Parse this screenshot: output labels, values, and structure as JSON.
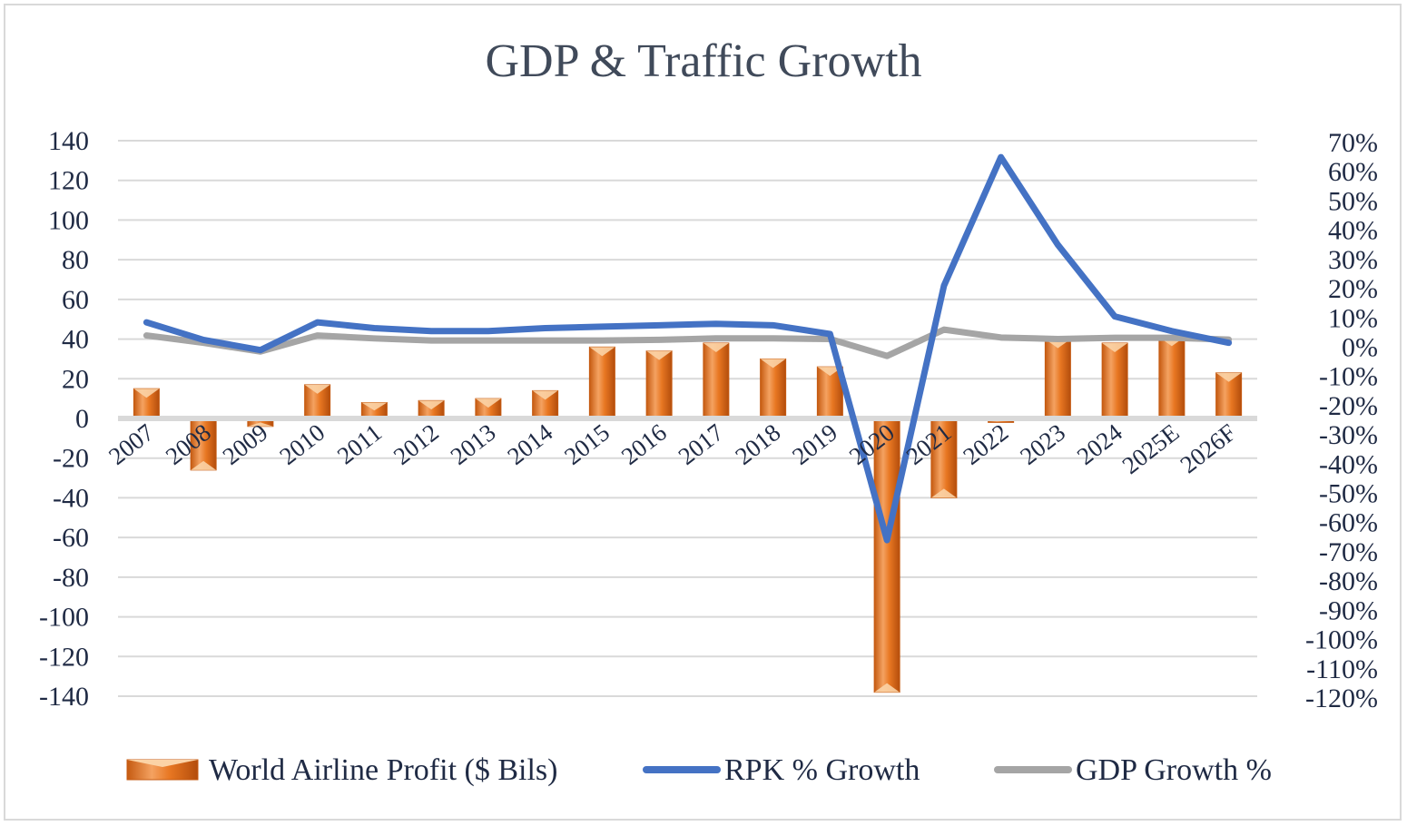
{
  "chart_data": {
    "type": "bar",
    "title": "GDP & Traffic Growth",
    "categories": [
      "2007",
      "2008",
      "2009",
      "2010",
      "2011",
      "2012",
      "2013",
      "2014",
      "2015",
      "2016",
      "2017",
      "2018",
      "2019",
      "2020",
      "2021",
      "2022",
      "2023",
      "2024",
      "2025E",
      "2026F"
    ],
    "series": [
      {
        "name": "World Airline Profit ($ Bils)",
        "type": "bar",
        "axis": "left",
        "color": "#e87722",
        "values": [
          15,
          -26,
          -4,
          17,
          8,
          9,
          10,
          14,
          36,
          34,
          38,
          30,
          26,
          -138,
          -40,
          -2,
          40,
          38,
          41,
          23
        ]
      },
      {
        "name": "RPK % Growth",
        "type": "line",
        "axis": "right",
        "color": "#4472c4",
        "values": [
          8.5,
          2.5,
          -1,
          8.5,
          6.5,
          5.5,
          5.5,
          6.5,
          7,
          7.5,
          8,
          7.5,
          4.5,
          -66,
          21,
          65,
          35,
          10.5,
          5.5,
          1.5
        ]
      },
      {
        "name": "GDP Growth %",
        "type": "line",
        "axis": "right",
        "color": "#a5a5a5",
        "values": [
          4,
          1.5,
          -1.5,
          4,
          3,
          2.3,
          2.3,
          2.3,
          2.3,
          2.5,
          3,
          3,
          2.8,
          -3,
          6,
          3.3,
          2.8,
          3.2,
          3.2,
          2.6
        ]
      }
    ],
    "y_left": {
      "ylim": [
        -140,
        140
      ],
      "ticks": [
        "140",
        "120",
        "100",
        "80",
        "60",
        "40",
        "20",
        "0",
        "-20",
        "-40",
        "-60",
        "-80",
        "-100",
        "-120",
        "-140"
      ]
    },
    "y_right": {
      "ylim": [
        -120,
        70
      ],
      "ticks": [
        "70%",
        "60%",
        "50%",
        "40%",
        "30%",
        "20%",
        "10%",
        "0%",
        "-10%",
        "-20%",
        "-30%",
        "-40%",
        "-50%",
        "-60%",
        "-70%",
        "-80%",
        "-90%",
        "-100%",
        "-110%",
        "-120%"
      ]
    },
    "grid": true,
    "legend_position": "bottom"
  }
}
